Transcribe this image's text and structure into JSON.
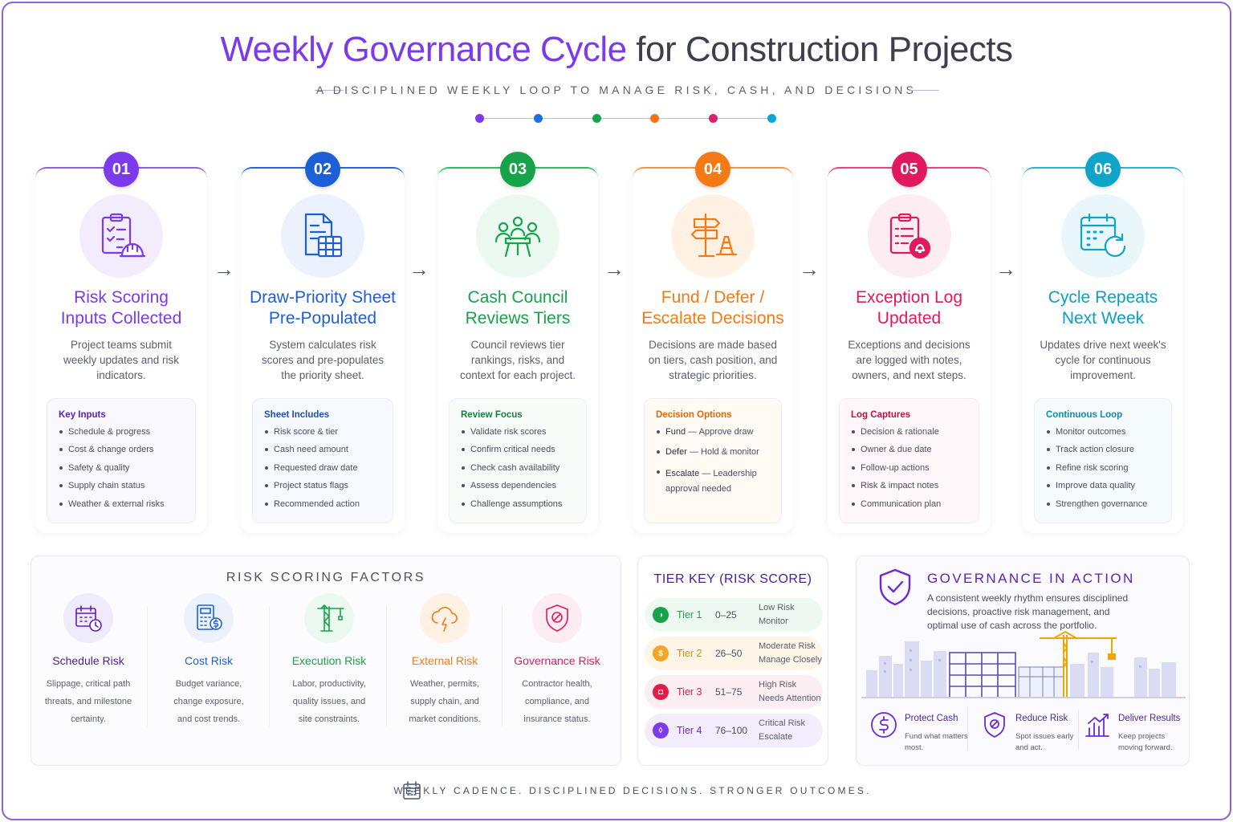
{
  "header": {
    "title_main": "Weekly Governance Cycle",
    "title_rest": "for Construction Projects",
    "subtitle": "A DISCIPLINED WEEKLY LOOP TO MANAGE RISK, CASH, AND DECISIONS",
    "dot_colors": [
      "#7c3aed",
      "#1d6ee6",
      "#16a34a",
      "#f97316",
      "#e11d74",
      "#06a9d6"
    ]
  },
  "steps": [
    {
      "number": "01",
      "color": "#7c3aed",
      "icon": "clipboard-hardhat-icon",
      "title_line1": "Risk Scoring",
      "title_line2": "Inputs Collected",
      "desc": "Project teams submit weekly updates and risk indicators.",
      "box_title": "Key Inputs",
      "items": [
        "Schedule & progress",
        "Cost & change orders",
        "Safety & quality",
        "Supply chain status",
        "Weather & external risks"
      ]
    },
    {
      "number": "02",
      "color": "#1d5fd6",
      "icon": "spreadsheet-icon",
      "title_line1": "Draw-Priority Sheet",
      "title_line2": "Pre-Populated",
      "desc": "System calculates risk scores and pre-populates the priority sheet.",
      "box_title": "Sheet Includes",
      "items": [
        "Risk score & tier",
        "Cash need amount",
        "Requested draw date",
        "Project status flags",
        "Recommended action"
      ]
    },
    {
      "number": "03",
      "color": "#16a34a",
      "icon": "council-meeting-icon",
      "title_line1": "Cash Council",
      "title_line2": "Reviews Tiers",
      "desc": "Council reviews tier rankings, risks, and context for each project.",
      "box_title": "Review Focus",
      "items": [
        "Validate risk scores",
        "Confirm critical needs",
        "Check cash availability",
        "Assess dependencies",
        "Challenge assumptions"
      ]
    },
    {
      "number": "04",
      "color": "#f47a16",
      "icon": "signpost-cone-icon",
      "title_line1": "Fund / Defer /",
      "title_line2": "Escalate Decisions",
      "desc": "Decisions are made based on tiers, cash position, and strategic priorities.",
      "box_title": "Decision Options",
      "decisions": [
        {
          "term": "Fund",
          "text": " — Approve draw"
        },
        {
          "term": "Defer",
          "text": " — Hold & monitor"
        },
        {
          "term": "Escalate",
          "text": " — Leadership approval needed"
        }
      ]
    },
    {
      "number": "05",
      "color": "#e1195e",
      "icon": "clipboard-alert-icon",
      "title_line1": "Exception Log",
      "title_line2": "Updated",
      "desc": "Exceptions and decisions are logged with notes, owners, and next steps.",
      "box_title": "Log Captures",
      "items": [
        "Decision & rationale",
        "Owner & due date",
        "Follow-up actions",
        "Risk & impact notes",
        "Communication plan"
      ]
    },
    {
      "number": "06",
      "color": "#0ea5c9",
      "icon": "calendar-repeat-icon",
      "title_line1": "Cycle Repeats",
      "title_line2": "Next Week",
      "desc": "Updates drive next week's cycle for continuous improvement.",
      "box_title": "Continuous Loop",
      "items": [
        "Monitor outcomes",
        "Track action closure",
        "Refine risk scoring",
        "Improve data quality",
        "Strengthen governance"
      ]
    }
  ],
  "risk_factors": {
    "title": "RISK SCORING FACTORS",
    "items": [
      {
        "name": "Schedule Risk",
        "color": "#5b21b6",
        "icon": "calendar-clock-icon",
        "desc": [
          "Slippage, critical path",
          "threats, and milestone",
          "certainty."
        ]
      },
      {
        "name": "Cost Risk",
        "color": "#1d5fd6",
        "icon": "calculator-dollar-icon",
        "desc": [
          "Budget variance,",
          "change exposure,",
          "and cost trends."
        ]
      },
      {
        "name": "Execution Risk",
        "color": "#16a34a",
        "icon": "crane-icon",
        "desc": [
          "Labor, productivity,",
          "quality issues, and",
          "site constraints."
        ]
      },
      {
        "name": "External Risk",
        "color": "#f47a16",
        "icon": "storm-cloud-icon",
        "desc": [
          "Weather, permits,",
          "supply chain, and",
          "market conditions."
        ]
      },
      {
        "name": "Governance Risk",
        "color": "#e1195e",
        "icon": "shield-ban-icon",
        "desc": [
          "Contractor health,",
          "compliance, and",
          "insurance status."
        ]
      }
    ]
  },
  "tier_key": {
    "title": "TIER KEY (RISK SCORE)",
    "tiers": [
      {
        "name": "Tier 1",
        "range": "0–25",
        "color": "#16a34a",
        "bg": "#eefaf1",
        "symbol": "◑",
        "note_line1": "Low Risk",
        "note_line2": "Monitor"
      },
      {
        "name": "Tier 2",
        "range": "26–50",
        "color": "#f5a524",
        "bg": "#fff6e8",
        "symbol": "$",
        "note_line1": "Moderate Risk",
        "note_line2": "Manage Closely"
      },
      {
        "name": "Tier 3",
        "range": "51–75",
        "color": "#e11d48",
        "bg": "#fdeef1",
        "symbol": "◘",
        "note_line1": "High Risk",
        "note_line2": "Needs Attention"
      },
      {
        "name": "Tier 4",
        "range": "76–100",
        "color": "#7c3aed",
        "bg": "#f3edfd",
        "symbol": "◊",
        "note_line1": "Critical Risk",
        "note_line2": "Escalate"
      }
    ]
  },
  "governance": {
    "title": "GOVERNANCE IN ACTION",
    "desc": "A consistent weekly rhythm ensures disciplined decisions, proactive risk management, and optimal use of cash across the portfolio.",
    "features": [
      {
        "name": "Protect Cash",
        "icon": "dollar-circle-icon",
        "desc_line1": "Fund what matters",
        "desc_line2": "most."
      },
      {
        "name": "Reduce Risk",
        "icon": "shield-icon",
        "desc_line1": "Spot issues early",
        "desc_line2": "and act."
      },
      {
        "name": "Deliver Results",
        "icon": "bar-chart-icon",
        "desc_line1": "Keep projects",
        "desc_line2": "moving forward."
      }
    ]
  },
  "footer": {
    "text": "WEEKLY CADENCE. DISCIPLINED DECISIONS. STRONGER OUTCOMES."
  }
}
